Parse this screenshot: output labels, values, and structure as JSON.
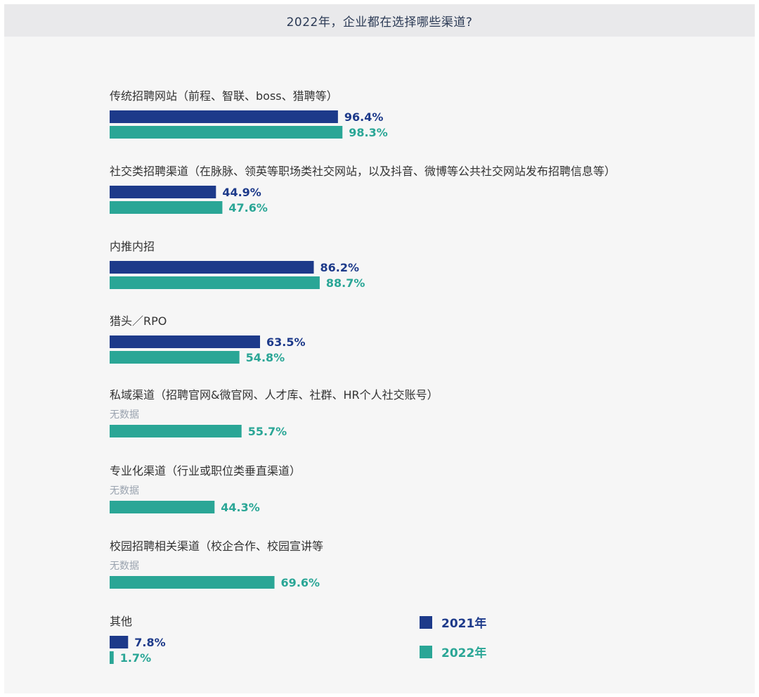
{
  "header": {
    "title": "2022年，企业都在选择哪些渠道?"
  },
  "colors": {
    "2021": "#1d3a8a",
    "2022": "#2aa696"
  },
  "chart_data": {
    "type": "bar",
    "orientation": "horizontal",
    "title": "2022年，企业都在选择哪些渠道?",
    "categories": [
      "传统招聘网站（前程、智联、boss、猎聘等）",
      "社交类招聘渠道（在脉脉、领英等职场类社交网站，以及抖音、微博等公共社交网站发布招聘信息等）",
      "内推内招",
      "猎头／RPO",
      "私域渠道（招聘官网&微官网、人才库、社群、HR个人社交账号）",
      "专业化渠道（行业或职位类垂直渠道）",
      "校园招聘相关渠道（校企合作、校园宣讲等",
      "其他"
    ],
    "no_data_text": "无数据",
    "series": [
      {
        "name": "2021年",
        "values": [
          96.4,
          44.9,
          86.2,
          63.5,
          null,
          null,
          null,
          7.8
        ],
        "labels": [
          "96.4%",
          "44.9%",
          "86.2%",
          "63.5%",
          null,
          null,
          null,
          "7.8%"
        ]
      },
      {
        "name": "2022年",
        "values": [
          98.3,
          47.6,
          88.7,
          54.8,
          55.7,
          44.3,
          69.6,
          1.7
        ],
        "labels": [
          "98.3%",
          "47.6%",
          "88.7%",
          "54.8%",
          "55.7%",
          "44.3%",
          "69.6%",
          "1.7%"
        ]
      }
    ],
    "xlim": [
      0,
      100
    ],
    "grid": false,
    "legend": "bottom-right"
  }
}
